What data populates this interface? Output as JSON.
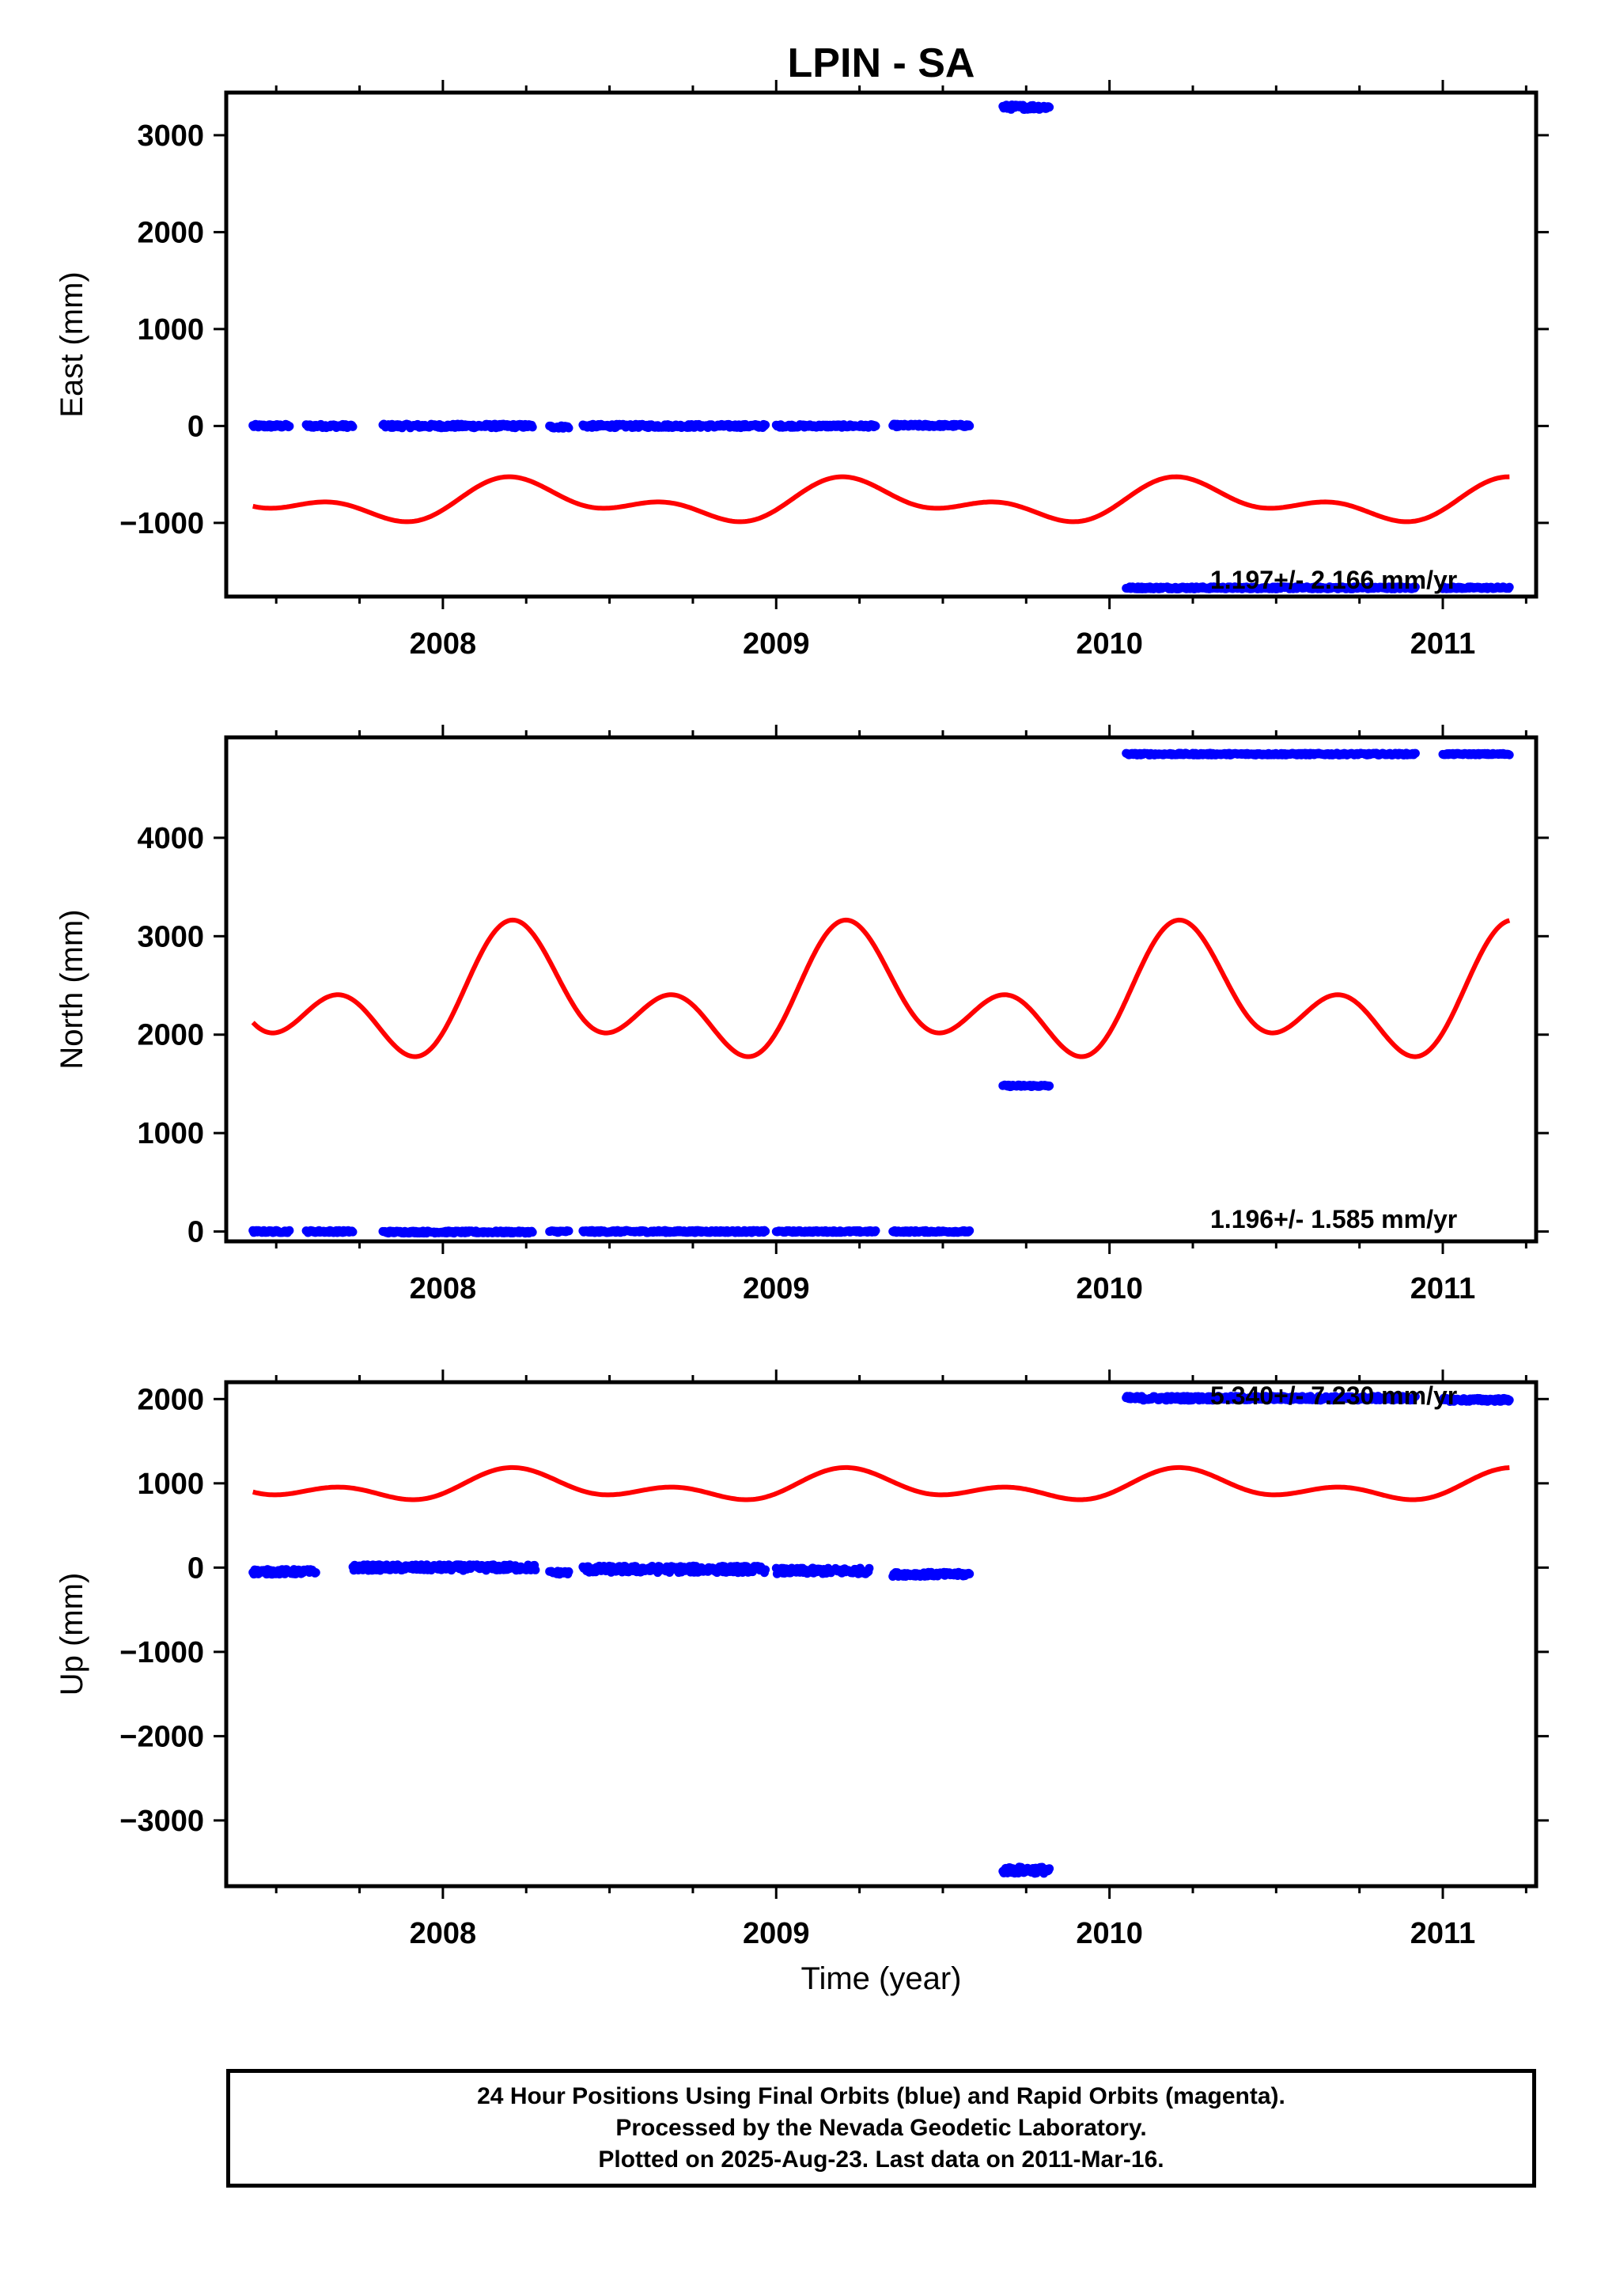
{
  "title": "LPIN - SA",
  "colors": {
    "data_points": "#0000ff",
    "model_curve": "#ff0000",
    "axes": "#000000"
  },
  "chart_data": [
    {
      "type": "scatter",
      "ylabel": "East (mm)",
      "xlabel": "",
      "xlim": [
        2007.35,
        2011.28
      ],
      "ylim": [
        -1760,
        3440
      ],
      "yticks": [
        3000,
        2000,
        1000,
        0,
        -1000
      ],
      "ytick_labels": [
        "3000",
        "2000",
        "1000",
        "0",
        "−1000"
      ],
      "xticks": [
        2008,
        2009,
        2010,
        2011
      ],
      "xtick_labels": [
        "2008",
        "2009",
        "2010",
        "2011"
      ],
      "rate_label": "1.197+/- 2.166 mm/yr",
      "series": [
        {
          "kind": "points",
          "segments": [
            {
              "x": [
                2007.43,
                2007.54
              ],
              "y": 0,
              "jitter": 18
            },
            {
              "x": [
                2007.59,
                2007.73
              ],
              "y": 0,
              "jitter": 18
            },
            {
              "x": [
                2007.82,
                2008.27
              ],
              "y": 0,
              "jitter": 20
            },
            {
              "x": [
                2008.32,
                2008.38
              ],
              "y": -10,
              "jitter": 15
            },
            {
              "x": [
                2008.42,
                2008.97
              ],
              "y": 0,
              "jitter": 18
            },
            {
              "x": [
                2009.0,
                2009.3
              ],
              "y": 0,
              "jitter": 15
            },
            {
              "x": [
                2009.35,
                2009.58
              ],
              "y": 5,
              "jitter": 15
            },
            {
              "x": [
                2009.68,
                2009.82
              ],
              "y": 3290,
              "jitter": 25
            },
            {
              "x": [
                2010.05,
                2010.92
              ],
              "y": -1670,
              "jitter": 12
            },
            {
              "x": [
                2011.0,
                2011.2
              ],
              "y": -1670,
              "jitter": 10
            }
          ]
        },
        {
          "kind": "model",
          "x_range": [
            2007.43,
            2011.2
          ],
          "offset": -780,
          "annual_amp": 150,
          "annual_phase": 0.26,
          "semi_amp": 120,
          "semi_phase": 0.18
        }
      ]
    },
    {
      "type": "scatter",
      "ylabel": "North (mm)",
      "xlabel": "",
      "xlim": [
        2007.35,
        2011.28
      ],
      "ylim": [
        -100,
        5020
      ],
      "yticks": [
        4000,
        3000,
        2000,
        1000,
        0
      ],
      "ytick_labels": [
        "4000",
        "3000",
        "2000",
        "1000",
        "0"
      ],
      "xticks": [
        2008,
        2009,
        2010,
        2011
      ],
      "xtick_labels": [
        "2008",
        "2009",
        "2010",
        "2011"
      ],
      "rate_label": "1.196+/- 1.585 mm/yr",
      "series": [
        {
          "kind": "points",
          "segments": [
            {
              "x": [
                2007.43,
                2007.54
              ],
              "y": 0,
              "jitter": 12
            },
            {
              "x": [
                2007.59,
                2007.73
              ],
              "y": 0,
              "jitter": 12
            },
            {
              "x": [
                2007.82,
                2008.27
              ],
              "y": -5,
              "jitter": 12
            },
            {
              "x": [
                2008.32,
                2008.38
              ],
              "y": 0,
              "jitter": 10
            },
            {
              "x": [
                2008.42,
                2008.97
              ],
              "y": 0,
              "jitter": 12
            },
            {
              "x": [
                2009.0,
                2009.3
              ],
              "y": 0,
              "jitter": 10
            },
            {
              "x": [
                2009.35,
                2009.58
              ],
              "y": 0,
              "jitter": 10
            },
            {
              "x": [
                2009.68,
                2009.82
              ],
              "y": 1480,
              "jitter": 10
            },
            {
              "x": [
                2010.05,
                2010.92
              ],
              "y": 4850,
              "jitter": 10
            },
            {
              "x": [
                2011.0,
                2011.2
              ],
              "y": 4850,
              "jitter": 8
            }
          ]
        },
        {
          "kind": "model",
          "x_range": [
            2007.43,
            2011.2
          ],
          "offset": 2360,
          "annual_amp": 400,
          "annual_phase": 0.25,
          "semi_amp": 420,
          "semi_phase": 0.2
        }
      ]
    },
    {
      "type": "scatter",
      "ylabel": "Up (mm)",
      "xlabel": "Time (year)",
      "xlim": [
        2007.35,
        2011.28
      ],
      "ylim": [
        -3780,
        2200
      ],
      "yticks": [
        2000,
        1000,
        0,
        -1000,
        -2000,
        -3000
      ],
      "ytick_labels": [
        "2000",
        "1000",
        "0",
        "−1000",
        "−2000",
        "−3000"
      ],
      "xticks": [
        2008,
        2009,
        2010,
        2011
      ],
      "xtick_labels": [
        "2008",
        "2009",
        "2010",
        "2011"
      ],
      "rate_label": "5.340+/- 7.230 mm/yr",
      "series": [
        {
          "kind": "points",
          "segments": [
            {
              "x": [
                2007.43,
                2007.62
              ],
              "y": -50,
              "jitter": 30
            },
            {
              "x": [
                2007.73,
                2008.28
              ],
              "y": 0,
              "jitter": 35
            },
            {
              "x": [
                2008.32,
                2008.38
              ],
              "y": -60,
              "jitter": 20
            },
            {
              "x": [
                2008.42,
                2008.97
              ],
              "y": -20,
              "jitter": 40
            },
            {
              "x": [
                2009.0,
                2009.28
              ],
              "y": -40,
              "jitter": 35
            },
            {
              "x": [
                2009.35,
                2009.58
              ],
              "y": -80,
              "jitter": 25
            },
            {
              "x": [
                2009.68,
                2009.82
              ],
              "y": -3590,
              "jitter": 40
            },
            {
              "x": [
                2010.05,
                2010.92
              ],
              "y": 2010,
              "jitter": 25
            },
            {
              "x": [
                2011.0,
                2011.2
              ],
              "y": 1990,
              "jitter": 20
            }
          ]
        },
        {
          "kind": "model",
          "x_range": [
            2007.43,
            2011.2
          ],
          "offset": 960,
          "annual_amp": 120,
          "annual_phase": 0.24,
          "semi_amp": 110,
          "semi_phase": 0.2
        }
      ]
    }
  ],
  "footer": {
    "line1": "24 Hour Positions Using Final Orbits (blue) and Rapid Orbits (magenta).",
    "line2": "Processed by the Nevada Geodetic Laboratory.",
    "line3": "Plotted on 2025-Aug-23. Last data on 2011-Mar-16."
  }
}
